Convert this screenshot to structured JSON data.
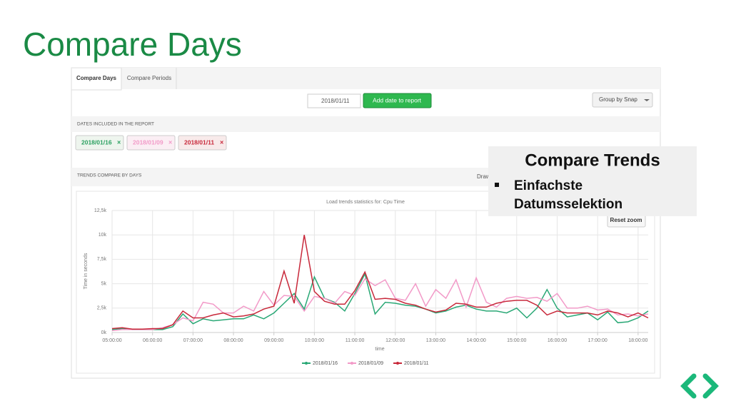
{
  "slide_title": "Compare Days",
  "tabs": [
    "Compare Days",
    "Compare Periods"
  ],
  "date_input": "2018/01/11",
  "add_button": "Add date to report",
  "group_by": "Group by Snap",
  "dates_section": "DATES INCLUDED IN THE REPORT",
  "date_chips": [
    {
      "label": "2018/01/16",
      "color": "#2aa060",
      "bg": "#eef5ee"
    },
    {
      "label": "2018/01/09",
      "color": "#f29ac8",
      "bg": "#fbeef4"
    },
    {
      "label": "2018/01/11",
      "color": "#c8283a",
      "bg": "#f8eaea"
    }
  ],
  "trends_section": "TRENDS COMPARE BY DAYS",
  "draw_label": "Draw",
  "callout": {
    "title": "Compare Trends",
    "bullet": "Einfachste Datumsselektion"
  },
  "reset_zoom": "Reset zoom",
  "chart_data": {
    "type": "line",
    "title": "Load trends statistics for: Cpu Time",
    "y_label": "Time in seconds",
    "x_label": "time",
    "x": [
      5,
      5.25,
      5.5,
      5.75,
      6,
      6.25,
      6.5,
      6.75,
      7,
      7.25,
      7.5,
      7.75,
      8,
      8.25,
      8.5,
      8.75,
      9,
      9.25,
      9.5,
      9.75,
      10,
      10.25,
      10.5,
      10.75,
      11,
      11.25,
      11.5,
      11.75,
      12,
      12.25,
      12.5,
      12.75,
      13,
      13.25,
      13.5,
      13.75,
      14,
      14.25,
      14.5,
      14.75,
      15,
      15.25,
      15.5,
      15.75,
      16,
      16.25,
      16.5,
      16.75,
      17,
      17.25,
      17.5,
      17.75,
      18,
      18.25
    ],
    "xlim": [
      5,
      18.25
    ],
    "xticks": [
      {
        "value": 5,
        "label": "05:00:00"
      },
      {
        "value": 6,
        "label": "06:00:00"
      },
      {
        "value": 7,
        "label": "07:00:00"
      },
      {
        "value": 8,
        "label": "08:00:00"
      },
      {
        "value": 9,
        "label": "09:00:00"
      },
      {
        "value": 10,
        "label": "10:00:00"
      },
      {
        "value": 11,
        "label": "11:00:00"
      },
      {
        "value": 12,
        "label": "12:00:00"
      },
      {
        "value": 13,
        "label": "13:00:00"
      },
      {
        "value": 14,
        "label": "14:00:00"
      },
      {
        "value": 15,
        "label": "15:00:00"
      },
      {
        "value": 16,
        "label": "16:00:00"
      },
      {
        "value": 17,
        "label": "17:00:00"
      },
      {
        "value": 18,
        "label": "18:00:00"
      }
    ],
    "ylim": [
      0,
      12500
    ],
    "yticks": [
      {
        "value": 0,
        "label": "0k"
      },
      {
        "value": 2500,
        "label": "2,5k"
      },
      {
        "value": 5000,
        "label": "5k"
      },
      {
        "value": 7500,
        "label": "7,5k"
      },
      {
        "value": 10000,
        "label": "10k"
      },
      {
        "value": 12500,
        "label": "12,5k"
      }
    ],
    "grid": true,
    "series": [
      {
        "name": "2018/01/16",
        "color": "#2aa876",
        "values": [
          300,
          400,
          300,
          300,
          300,
          300,
          600,
          1900,
          900,
          1400,
          1200,
          1300,
          1400,
          1400,
          1800,
          1400,
          2000,
          3000,
          4000,
          2400,
          5700,
          3500,
          3100,
          2200,
          4000,
          6000,
          1900,
          3100,
          3000,
          2800,
          2700,
          2400,
          2000,
          2200,
          2600,
          2800,
          2400,
          2200,
          2200,
          2000,
          2500,
          1500,
          2500,
          4400,
          2500,
          1600,
          1800,
          2000,
          1300,
          2100,
          1000,
          1100,
          1500,
          2200
        ]
      },
      {
        "name": "2018/01/09",
        "color": "#f29ac8",
        "values": [
          200,
          300,
          300,
          300,
          300,
          500,
          800,
          1500,
          1200,
          3100,
          2900,
          2000,
          2000,
          2700,
          2200,
          4200,
          2800,
          3800,
          3700,
          2200,
          3700,
          3500,
          3000,
          4200,
          3800,
          5500,
          4800,
          5400,
          3500,
          3300,
          5000,
          2700,
          4400,
          3500,
          5400,
          2600,
          5600,
          3100,
          2600,
          3500,
          3700,
          3500,
          3600,
          3200,
          4000,
          2500,
          2500,
          2700,
          2300,
          2400,
          1800,
          1900,
          1700,
          1900
        ]
      },
      {
        "name": "2018/01/11",
        "color": "#c8283a",
        "values": [
          400,
          500,
          350,
          350,
          400,
          400,
          800,
          2200,
          1500,
          1500,
          1800,
          2000,
          1600,
          1700,
          1900,
          2400,
          2700,
          6300,
          3000,
          10000,
          4200,
          3200,
          2900,
          2900,
          4300,
          6200,
          3400,
          3500,
          3400,
          3000,
          2800,
          2400,
          2100,
          2300,
          3000,
          2900,
          2600,
          2600,
          3000,
          3200,
          3300,
          3300,
          2800,
          1800,
          2200,
          2000,
          2000,
          2000,
          1800,
          2200,
          2000,
          1600,
          2000,
          1500
        ]
      }
    ]
  }
}
